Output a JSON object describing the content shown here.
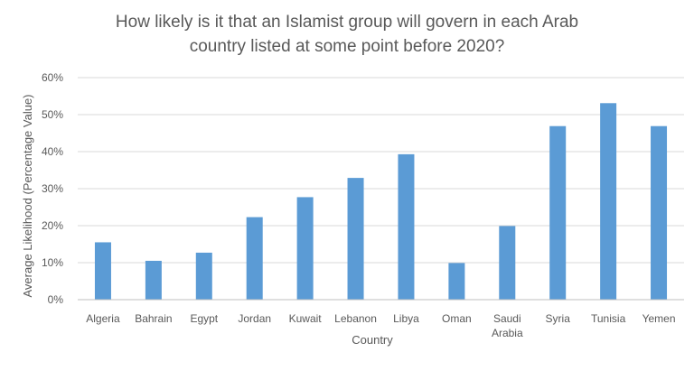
{
  "chart_data": {
    "type": "bar",
    "title_lines": [
      "How likely is it that an Islamist group will govern in each Arab",
      "country listed at some point before 2020?"
    ],
    "xlabel": "Country",
    "ylabel": "Average Likelihood (Percentage Value)",
    "categories": [
      [
        "Algeria"
      ],
      [
        "Bahrain"
      ],
      [
        "Egypt"
      ],
      [
        "Jordan"
      ],
      [
        "Kuwait"
      ],
      [
        "Lebanon"
      ],
      [
        "Libya"
      ],
      [
        "Oman"
      ],
      [
        "Saudi",
        "Arabia"
      ],
      [
        "Syria"
      ],
      [
        "Tunisia"
      ],
      [
        "Yemen"
      ]
    ],
    "values": [
      15.5,
      10.5,
      12.7,
      22.3,
      27.7,
      32.9,
      39.3,
      9.9,
      19.9,
      46.9,
      53.1,
      46.9
    ],
    "ylim": [
      0,
      60
    ],
    "yticks": [
      "0%",
      "10%",
      "20%",
      "30%",
      "40%",
      "50%",
      "60%"
    ],
    "grid": true,
    "legend": "none",
    "bar_color": "#5b9bd5"
  }
}
